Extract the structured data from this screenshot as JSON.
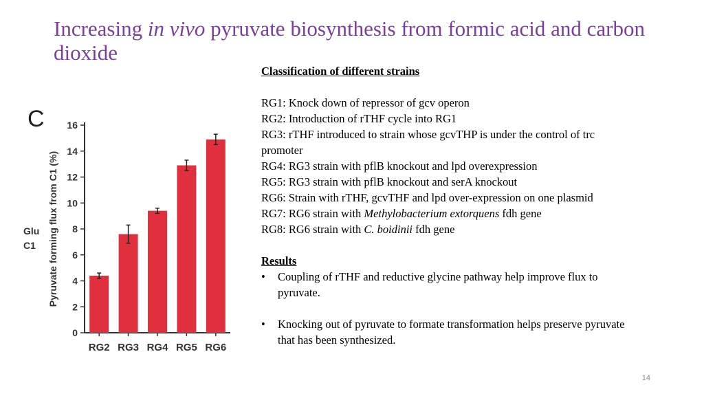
{
  "title": {
    "pre": "Increasing ",
    "italic": "in vivo",
    "post": " pyruvate biosynthesis from formic acid and carbon dioxide"
  },
  "chart_data": {
    "type": "bar",
    "panel_label": "C",
    "side_label_1": "Glu",
    "side_label_2": "C1",
    "ylabel": "Pyruvate forming flux from C1 (%)",
    "categories": [
      "RG2",
      "RG3",
      "RG4",
      "RG5",
      "RG6"
    ],
    "values": [
      4.4,
      7.6,
      9.4,
      12.9,
      14.9
    ],
    "errors": [
      0.2,
      0.7,
      0.2,
      0.4,
      0.4
    ],
    "ylim": [
      0,
      16
    ],
    "yticks": [
      0,
      2,
      4,
      6,
      8,
      10,
      12,
      14,
      16
    ],
    "bar_color": "#e0303e",
    "grid": false
  },
  "classification": {
    "heading": "Classification of different strains",
    "lines": [
      {
        "pre": "RG1: Knock down of repressor of gcv operon",
        "italic": "",
        "post": ""
      },
      {
        "pre": "RG2: Introduction of rTHF cycle into RG1",
        "italic": "",
        "post": ""
      },
      {
        "pre": "RG3: rTHF introduced to strain whose gcvTHP is under the control of trc promoter",
        "italic": "",
        "post": ""
      },
      {
        "pre": "RG4: RG3 strain with pflB knockout and lpd overexpression",
        "italic": "",
        "post": ""
      },
      {
        "pre": "RG5: RG3 strain with pflB knockout and serA knockout",
        "italic": "",
        "post": ""
      },
      {
        "pre": "RG6: Strain with rTHF, gcvTHF and lpd over-expression on one plasmid",
        "italic": "",
        "post": ""
      },
      {
        "pre": "RG7: RG6 strain with ",
        "italic": "Methylobacterium extorquens",
        "post": " fdh gene"
      },
      {
        "pre": "RG8: RG6 strain with ",
        "italic": "C. boidinii",
        "post": " fdh gene"
      }
    ]
  },
  "results": {
    "heading": "Results",
    "bullets": [
      "Coupling of rTHF and reductive glycine pathway help improve flux to pyruvate.",
      "Knocking out of pyruvate to formate transformation helps preserve pyruvate that has been synthesized."
    ]
  },
  "page_number": "14"
}
